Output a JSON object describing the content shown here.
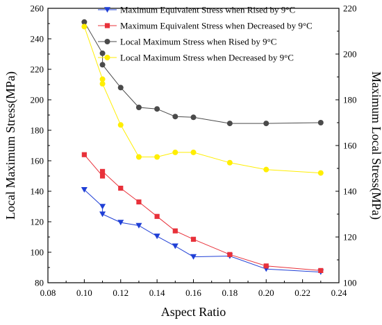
{
  "chart_data": {
    "type": "line",
    "xlabel": "Aspect Ratio",
    "ylabel_left": "Local Maximum Stress(MPa)",
    "ylabel_right": "Maximum Local Stress(MPa)",
    "xlim": [
      0.08,
      0.24
    ],
    "ylim_left": [
      80,
      260
    ],
    "ylim_right": [
      100,
      220
    ],
    "x_ticks": [
      "0.08",
      "0.10",
      "0.12",
      "0.14",
      "0.16",
      "0.18",
      "0.20",
      "0.22",
      "0.24"
    ],
    "y_left_ticks": [
      "80",
      "100",
      "120",
      "140",
      "160",
      "180",
      "200",
      "220",
      "240",
      "260"
    ],
    "y_right_ticks": [
      "100",
      "120",
      "140",
      "160",
      "180",
      "200",
      "220"
    ],
    "legend_position": "top-right",
    "grid": false,
    "series": [
      {
        "name": "Maximum Equivalent Stress when Rised by 9°C",
        "axis": "left",
        "color": "#1f3fd6",
        "marker": "triangle-down",
        "points": [
          [
            0.1,
            141
          ],
          [
            0.11,
            130
          ],
          [
            0.11,
            125
          ],
          [
            0.12,
            119.5
          ],
          [
            0.13,
            117.5
          ],
          [
            0.14,
            110.5
          ],
          [
            0.15,
            104
          ],
          [
            0.16,
            97
          ],
          [
            0.18,
            97.5
          ],
          [
            0.2,
            89
          ],
          [
            0.23,
            87
          ]
        ]
      },
      {
        "name": "Maximum Equivalent Stress when Decreased by 9°C",
        "axis": "left",
        "color": "#e8313a",
        "marker": "square",
        "points": [
          [
            0.1,
            164
          ],
          [
            0.11,
            150
          ],
          [
            0.11,
            153
          ],
          [
            0.12,
            142
          ],
          [
            0.13,
            133
          ],
          [
            0.14,
            123.5
          ],
          [
            0.15,
            114
          ],
          [
            0.16,
            108.5
          ],
          [
            0.18,
            98.5
          ],
          [
            0.2,
            91
          ],
          [
            0.23,
            88
          ]
        ]
      },
      {
        "name": "Local Maximum Stress when Rised by 9°C",
        "axis": "left",
        "color": "#4a4a4a",
        "marker": "circle",
        "points": [
          [
            0.1,
            251
          ],
          [
            0.11,
            230.5
          ],
          [
            0.11,
            223
          ],
          [
            0.12,
            208
          ],
          [
            0.13,
            195
          ],
          [
            0.14,
            194
          ],
          [
            0.15,
            189
          ],
          [
            0.16,
            188.5
          ],
          [
            0.18,
            184.5
          ],
          [
            0.2,
            184.5
          ],
          [
            0.23,
            185
          ]
        ]
      },
      {
        "name": "Local Maximum Stress when Decreased by 9°C",
        "axis": "right",
        "color": "#ffee00",
        "marker": "circle",
        "points": [
          [
            0.1,
            212
          ],
          [
            0.11,
            189
          ],
          [
            0.11,
            187
          ],
          [
            0.12,
            169
          ],
          [
            0.13,
            155
          ],
          [
            0.14,
            155
          ],
          [
            0.15,
            157
          ],
          [
            0.16,
            157
          ],
          [
            0.18,
            152.5
          ],
          [
            0.2,
            149.5
          ],
          [
            0.23,
            148
          ]
        ]
      }
    ]
  }
}
